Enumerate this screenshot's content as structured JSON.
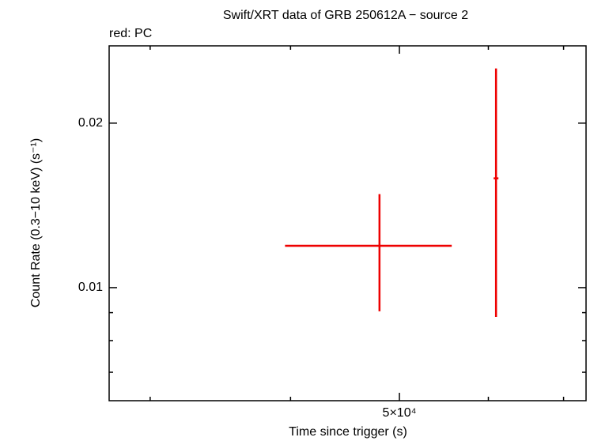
{
  "chart_data": {
    "type": "errorbar",
    "title": "Swift/XRT data of GRB 250612A − source 2",
    "annotation": "red: PC",
    "xlabel": "Time since trigger (s)",
    "ylabel": "Count Rate (0.3−10 keV) (s⁻¹)",
    "xscale": "log",
    "yscale": "log",
    "xlim": [
      27580,
      73300
    ],
    "ylim": [
      0.00621,
      0.0277
    ],
    "xticks": [
      {
        "value": 50000,
        "label": "5×10⁴"
      }
    ],
    "xminorticks": [
      30000,
      40000,
      60000,
      70000
    ],
    "yticks": [
      0.01,
      0.02
    ],
    "yminorticks": [
      0.007,
      0.008,
      0.009
    ],
    "series": [
      {
        "name": "PC",
        "color": "#ee0000",
        "x": [
          48000,
          60950
        ],
        "x_low": [
          39550,
          60650
        ],
        "x_high": [
          55660,
          61250
        ],
        "values": [
          0.01193,
          0.01585
        ],
        "y_low": [
          0.00905,
          0.00884
        ],
        "y_high": [
          0.01483,
          0.02518
        ]
      }
    ]
  }
}
